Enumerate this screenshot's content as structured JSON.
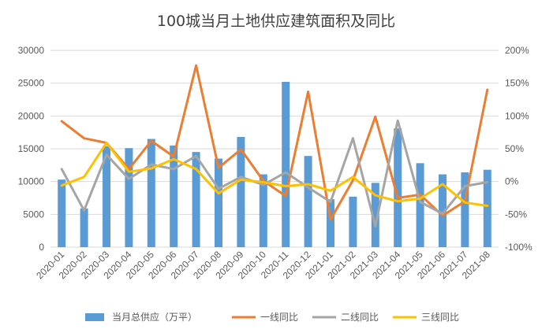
{
  "chart_data": {
    "type": "bar+line",
    "title": "100城当月土地供应建筑面积及同比",
    "categories": [
      "2020-01",
      "2020-02",
      "2020-03",
      "2020-04",
      "2020-05",
      "2020-06",
      "2020-07",
      "2020-08",
      "2020-09",
      "2020-10",
      "2020-11",
      "2020-12",
      "2021-01",
      "2021-02",
      "2021-03",
      "2021-04",
      "2021-05",
      "2021-06",
      "2021-07",
      "2021-08"
    ],
    "left_axis": {
      "ylim": [
        0,
        30000
      ],
      "ticks": [
        0,
        5000,
        10000,
        15000,
        20000,
        25000,
        30000
      ],
      "tick_labels": [
        "0",
        "5000",
        "10000",
        "15000",
        "20000",
        "25000",
        "30000"
      ]
    },
    "right_axis": {
      "ylim": [
        -100,
        200
      ],
      "ticks": [
        -100,
        -50,
        0,
        50,
        100,
        150,
        200
      ],
      "tick_labels": [
        "-100%",
        "-50%",
        "0%",
        "50%",
        "100%",
        "150%",
        "200%"
      ]
    },
    "bar_series": {
      "name": "当月总供应（万平）",
      "color": "#5b9bd5",
      "values": [
        10300,
        5900,
        15400,
        15100,
        16500,
        15500,
        14500,
        13500,
        16800,
        11100,
        25200,
        13900,
        7300,
        7700,
        9800,
        18100,
        12800,
        11100,
        11400,
        11800
      ]
    },
    "line_series": [
      {
        "name": "一线同比",
        "color": "#ed7d31",
        "values": [
          92,
          66,
          59,
          19,
          62,
          38,
          177,
          21,
          49,
          1,
          -22,
          137,
          -58,
          2,
          99,
          -25,
          -20,
          -52,
          -30,
          140
        ]
      },
      {
        "name": "二线同比",
        "color": "#a5a5a5",
        "values": [
          19,
          -44,
          41,
          4,
          26,
          19,
          39,
          -11,
          7,
          -5,
          14,
          -9,
          -31,
          66,
          -68,
          93,
          -31,
          -49,
          -7,
          -1
        ]
      },
      {
        "name": "三线同比",
        "color": "#ffc000",
        "values": [
          -6,
          7,
          59,
          15,
          20,
          34,
          19,
          -18,
          3,
          -1,
          -7,
          -4,
          -14,
          7,
          -21,
          -30,
          -26,
          -4,
          -32,
          -37
        ]
      }
    ],
    "legend_position": "bottom",
    "grid": true
  }
}
